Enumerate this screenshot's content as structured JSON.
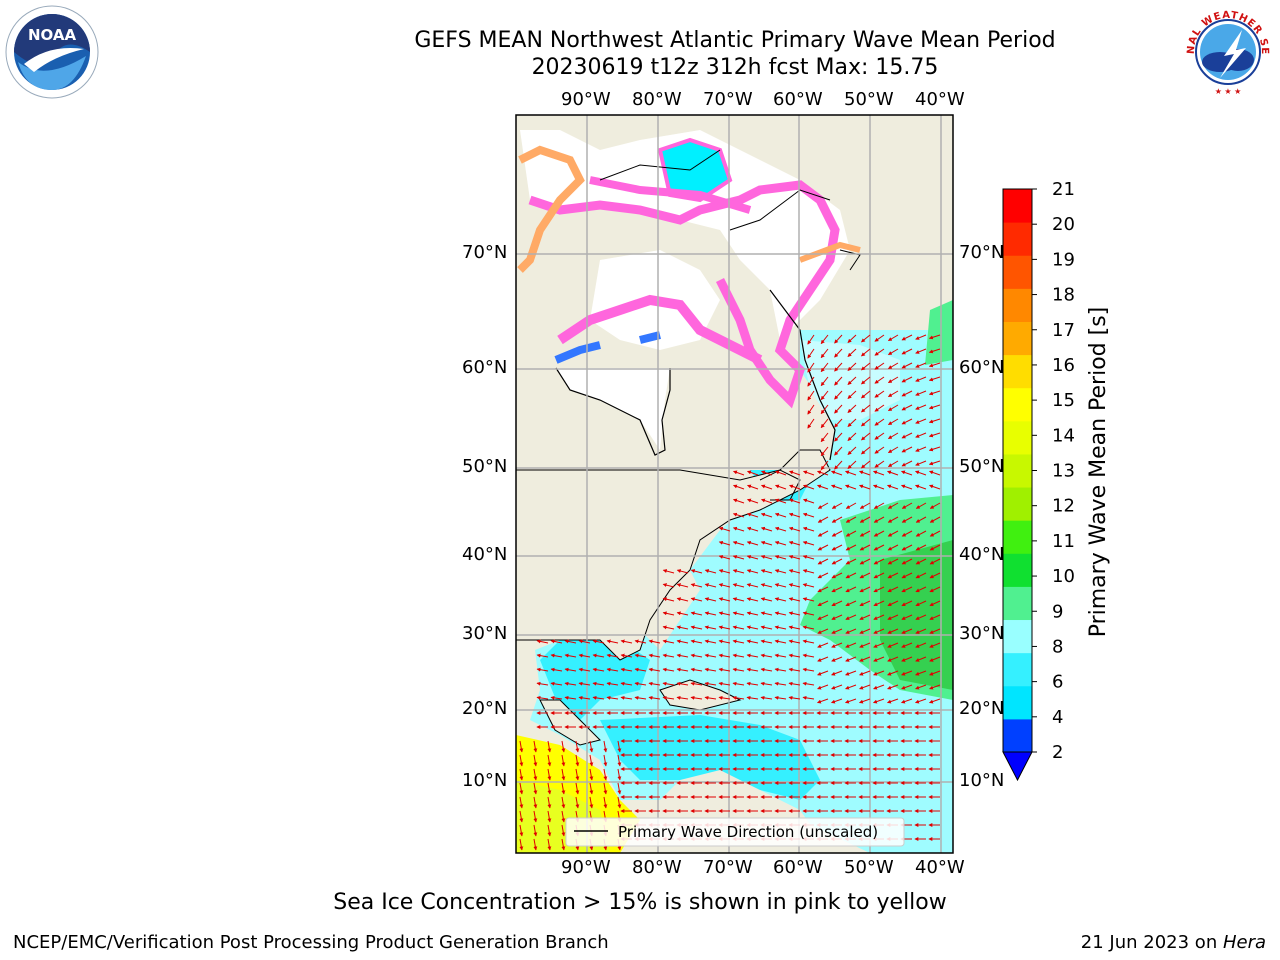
{
  "title": {
    "line1": "GEFS MEAN Northwest Atlantic Primary Wave Mean Period",
    "line2": "20230619 t12z 312h fcst   Max: 15.75"
  },
  "map": {
    "lon_ticks": [
      "90°W",
      "80°W",
      "70°W",
      "60°W",
      "50°W",
      "40°W"
    ],
    "lat_ticks": [
      "70°N",
      "60°N",
      "50°N",
      "40°N",
      "30°N",
      "20°N",
      "10°N"
    ],
    "legend_label": "Primary Wave Direction (unscaled)",
    "arrow_color": "#e00000"
  },
  "colorbar": {
    "label": "Primary Wave Mean Period [s]",
    "ticks": [
      "2",
      "4",
      "6",
      "8",
      "9",
      "10",
      "11",
      "12",
      "13",
      "14",
      "15",
      "16",
      "17",
      "18",
      "19",
      "20",
      "21"
    ],
    "colors": [
      "#0040ff",
      "#00e5ff",
      "#35f0ff",
      "#99ffff",
      "#50f090",
      "#10e030",
      "#40f010",
      "#a0f000",
      "#c8f800",
      "#e8ff00",
      "#ffff00",
      "#ffdd00",
      "#ffaa00",
      "#ff8800",
      "#ff5500",
      "#ff2a00",
      "#ff0000"
    ],
    "extend_color": "#0000ff"
  },
  "note": "Sea Ice Concentration > 15% is shown in pink to yellow",
  "footer": {
    "left": "NCEP/EMC/Verification Post Processing Product Generation Branch",
    "right_date": "21 Jun 2023 on ",
    "right_host": "Hera"
  },
  "logos": {
    "noaa_text": "NOAA",
    "nws_text": "NATIONAL WEATHER SERVICE"
  }
}
